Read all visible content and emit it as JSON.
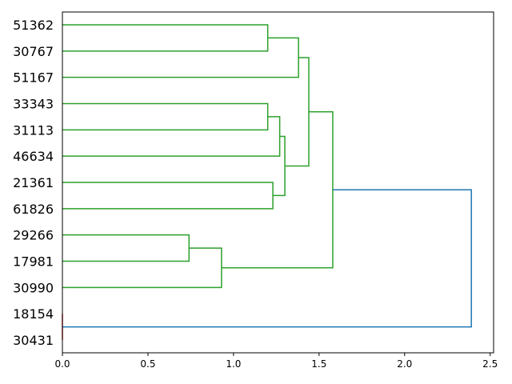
{
  "chart_data": {
    "type": "dendrogram",
    "orientation": "horizontal",
    "xlim": [
      0,
      2.52
    ],
    "x_ticks": [
      0.0,
      0.5,
      1.0,
      1.5,
      2.0,
      2.5
    ],
    "x_tick_labels": [
      "0.0",
      "0.5",
      "1.0",
      "1.5",
      "2.0",
      "2.5"
    ],
    "leaves": [
      "51362",
      "30767",
      "51167",
      "33343",
      "31113",
      "46634",
      "21361",
      "61826",
      "29266",
      "17981",
      "30990",
      "18154",
      "30431"
    ],
    "merges": [
      {
        "id": "A",
        "children": [
          "51362",
          "30767"
        ],
        "distance": 1.2,
        "color": "#2ca02c"
      },
      {
        "id": "B",
        "children": [
          "A",
          "51167"
        ],
        "distance": 1.38,
        "color": "#2ca02c"
      },
      {
        "id": "C",
        "children": [
          "33343",
          "31113"
        ],
        "distance": 1.2,
        "color": "#2ca02c"
      },
      {
        "id": "D",
        "children": [
          "C",
          "46634"
        ],
        "distance": 1.27,
        "color": "#2ca02c"
      },
      {
        "id": "E",
        "children": [
          "21361",
          "61826"
        ],
        "distance": 1.23,
        "color": "#2ca02c"
      },
      {
        "id": "F",
        "children": [
          "D",
          "E"
        ],
        "distance": 1.3,
        "color": "#2ca02c"
      },
      {
        "id": "G",
        "children": [
          "B",
          "F"
        ],
        "distance": 1.44,
        "color": "#2ca02c"
      },
      {
        "id": "H",
        "children": [
          "29266",
          "17981"
        ],
        "distance": 0.74,
        "color": "#2ca02c"
      },
      {
        "id": "I",
        "children": [
          "H",
          "30990"
        ],
        "distance": 0.93,
        "color": "#2ca02c"
      },
      {
        "id": "J",
        "children": [
          "G",
          "I"
        ],
        "distance": 1.58,
        "color": "#2ca02c"
      },
      {
        "id": "K",
        "children": [
          "18154",
          "30431"
        ],
        "distance": 0.0,
        "color": "#d62728"
      },
      {
        "id": "L",
        "children": [
          "J",
          "K"
        ],
        "distance": 2.39,
        "color": "#1f77b4"
      }
    ]
  }
}
